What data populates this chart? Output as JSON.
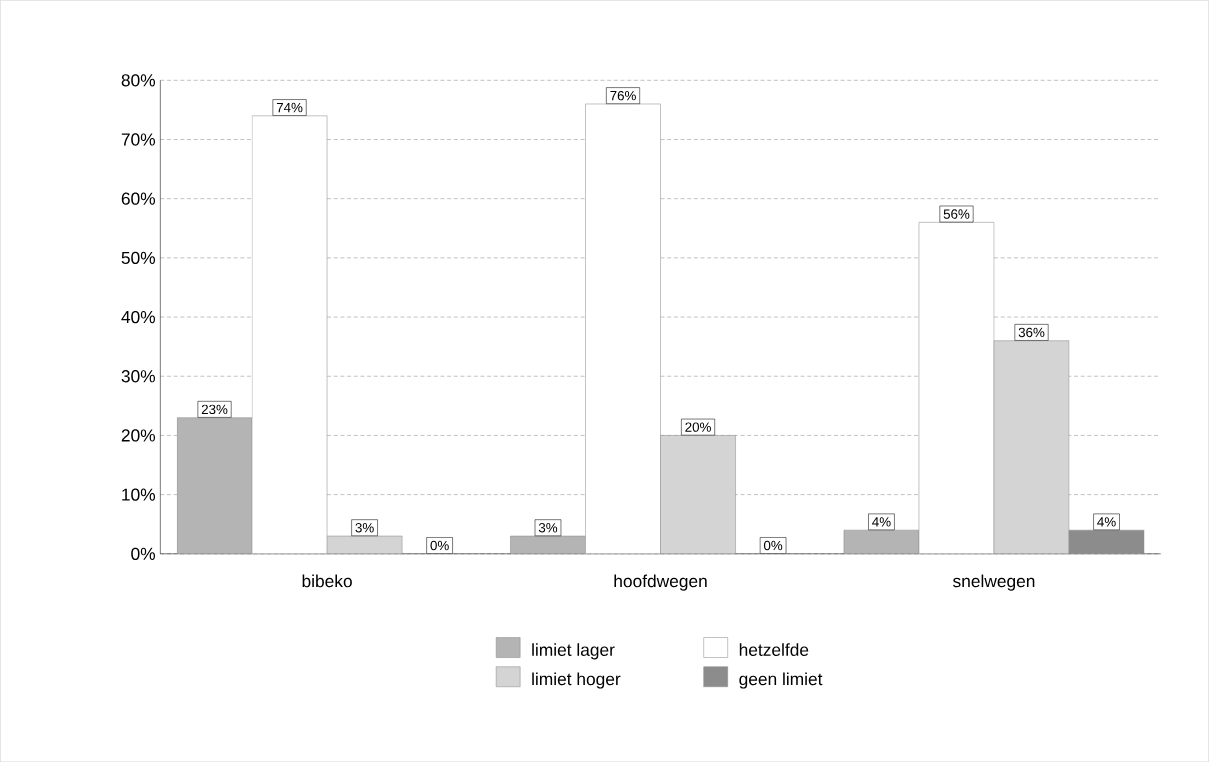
{
  "chart_data": {
    "type": "bar",
    "categories": [
      "bibeko",
      "hoofdwegen",
      "snelwegen"
    ],
    "series": [
      {
        "name": "limiet lager",
        "color": "#b4b4b4",
        "values": [
          23,
          3,
          4
        ],
        "value_labels": [
          "23%",
          "3%",
          "4%"
        ]
      },
      {
        "name": "hetzelfde",
        "color": "#ffffff",
        "values": [
          74,
          76,
          56
        ],
        "value_labels": [
          "74%",
          "76%",
          "56%"
        ]
      },
      {
        "name": "limiet hoger",
        "color": "#d4d4d4",
        "values": [
          3,
          20,
          36
        ],
        "value_labels": [
          "3%",
          "20%",
          "36%"
        ]
      },
      {
        "name": "geen limiet",
        "color": "#8c8c8c",
        "values": [
          0,
          0,
          4
        ],
        "value_labels": [
          "0%",
          "0%",
          "4%"
        ]
      }
    ],
    "ylim": [
      0,
      80
    ],
    "yticks": [
      {
        "value": 0,
        "label": "0%"
      },
      {
        "value": 10,
        "label": "10%"
      },
      {
        "value": 20,
        "label": "20%"
      },
      {
        "value": 30,
        "label": "30%"
      },
      {
        "value": 40,
        "label": "40%"
      },
      {
        "value": 50,
        "label": "50%"
      },
      {
        "value": 60,
        "label": "60%"
      },
      {
        "value": 70,
        "label": "70%"
      },
      {
        "value": 80,
        "label": "80%"
      }
    ],
    "grid": "y",
    "legend": "bottom"
  }
}
